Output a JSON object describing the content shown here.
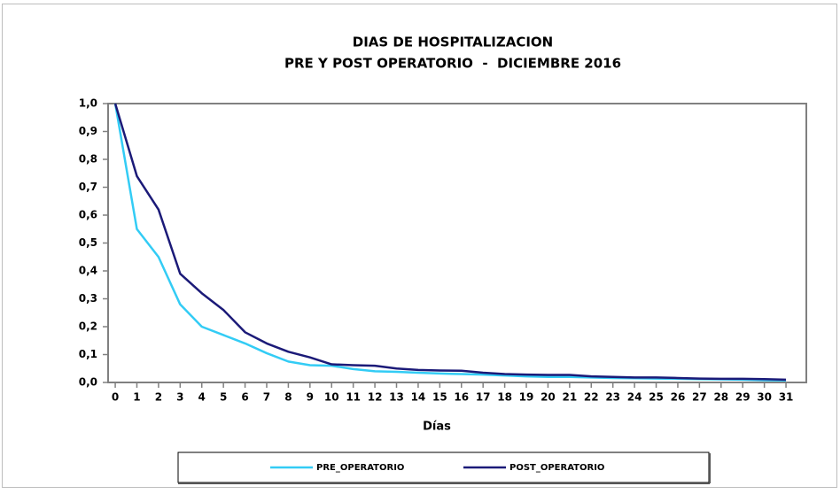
{
  "chart_data": {
    "type": "line",
    "title": "DIAS DE HOSPITALIZACION",
    "subtitle": "PRE Y POST OPERATORIO  -  DICIEMBRE 2016",
    "x_label": "Días",
    "x": [
      0,
      1,
      2,
      3,
      4,
      5,
      6,
      7,
      8,
      9,
      10,
      11,
      12,
      13,
      14,
      15,
      16,
      17,
      18,
      19,
      20,
      21,
      22,
      23,
      24,
      25,
      26,
      27,
      28,
      29,
      30,
      31
    ],
    "xlim": [
      -0.33,
      31.94
    ],
    "xticks": [
      0,
      1,
      2,
      3,
      4,
      5,
      6,
      7,
      8,
      9,
      10,
      11,
      12,
      13,
      14,
      15,
      16,
      17,
      18,
      19,
      20,
      21,
      22,
      23,
      24,
      25,
      26,
      27,
      28,
      29,
      30,
      31
    ],
    "ylim": [
      0,
      1
    ],
    "yticks": [
      {
        "value": 0,
        "label": "0,0"
      },
      {
        "value": 0.1,
        "label": "0,1"
      },
      {
        "value": 0.2,
        "label": "0,2"
      },
      {
        "value": 0.3,
        "label": "0,3"
      },
      {
        "value": 0.4,
        "label": "0,4"
      },
      {
        "value": 0.5,
        "label": "0,5"
      },
      {
        "value": 0.6,
        "label": "0,6"
      },
      {
        "value": 0.7,
        "label": "0,7"
      },
      {
        "value": 0.8,
        "label": "0,8"
      },
      {
        "value": 0.9,
        "label": "0,9"
      },
      {
        "value": 1,
        "label": "1,0"
      }
    ],
    "grid": false,
    "legend": "bottom",
    "series": [
      {
        "name": "PRE_OPERATORIO",
        "color": "#33ccf5",
        "values": [
          1.0,
          0.55,
          0.45,
          0.28,
          0.2,
          0.17,
          0.14,
          0.105,
          0.075,
          0.062,
          0.06,
          0.048,
          0.04,
          0.038,
          0.035,
          0.032,
          0.03,
          0.028,
          0.025,
          0.022,
          0.02,
          0.02,
          0.018,
          0.016,
          0.015,
          0.014,
          0.013,
          0.012,
          0.011,
          0.01,
          0.008,
          0.007
        ]
      },
      {
        "name": "POST_OPERATORIO",
        "color": "#1b1a78",
        "values": [
          1.0,
          0.74,
          0.62,
          0.39,
          0.32,
          0.26,
          0.18,
          0.14,
          0.11,
          0.09,
          0.065,
          0.062,
          0.06,
          0.05,
          0.045,
          0.043,
          0.042,
          0.035,
          0.03,
          0.028,
          0.027,
          0.027,
          0.022,
          0.02,
          0.018,
          0.018,
          0.016,
          0.014,
          0.013,
          0.013,
          0.012,
          0.01
        ]
      }
    ]
  }
}
